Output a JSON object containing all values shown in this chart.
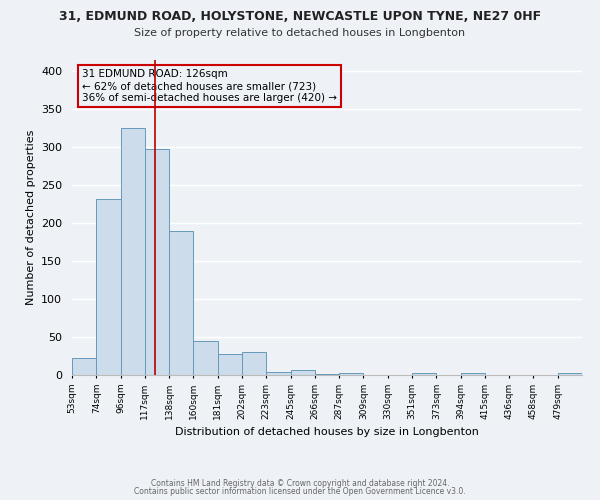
{
  "title_line1": "31, EDMUND ROAD, HOLYSTONE, NEWCASTLE UPON TYNE, NE27 0HF",
  "title_line2": "Size of property relative to detached houses in Longbenton",
  "xlabel": "Distribution of detached houses by size in Longbenton",
  "ylabel": "Number of detached properties",
  "bar_labels": [
    "53sqm",
    "74sqm",
    "96sqm",
    "117sqm",
    "138sqm",
    "160sqm",
    "181sqm",
    "202sqm",
    "223sqm",
    "245sqm",
    "266sqm",
    "287sqm",
    "309sqm",
    "330sqm",
    "351sqm",
    "373sqm",
    "394sqm",
    "415sqm",
    "436sqm",
    "458sqm",
    "479sqm"
  ],
  "bar_values": [
    23,
    232,
    325,
    298,
    190,
    45,
    28,
    30,
    4,
    6,
    1,
    2,
    0,
    0,
    3,
    0,
    2,
    0,
    0,
    0,
    2
  ],
  "bar_color": "#cddceb",
  "bar_edge_color": "#6699bb",
  "vline_color": "#bb0000",
  "annotation_text_line1": "31 EDMUND ROAD: 126sqm",
  "annotation_text_line2": "← 62% of detached houses are smaller (723)",
  "annotation_text_line3": "36% of semi-detached houses are larger (420) →",
  "annotation_box_color": "#cc0000",
  "ylim": [
    0,
    415
  ],
  "yticks": [
    0,
    50,
    100,
    150,
    200,
    250,
    300,
    350,
    400
  ],
  "background_color": "#eef2f7",
  "grid_color": "#ffffff",
  "footer_line1": "Contains HM Land Registry data © Crown copyright and database right 2024.",
  "footer_line2": "Contains public sector information licensed under the Open Government Licence v3.0."
}
